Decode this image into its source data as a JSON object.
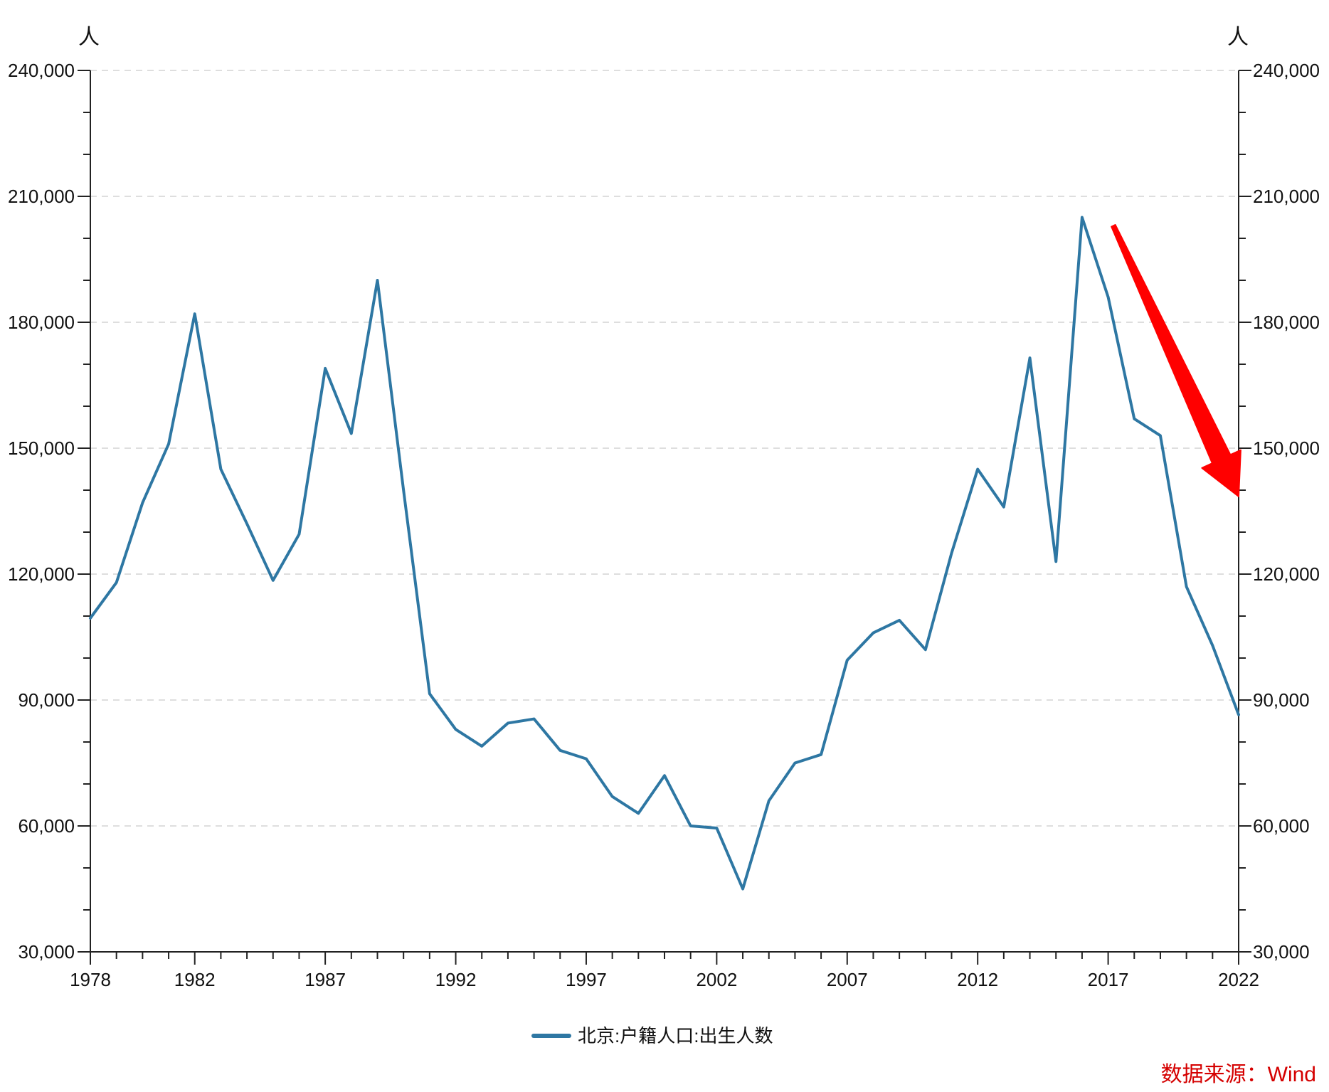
{
  "chart_data": {
    "type": "line",
    "title": "",
    "xlabel": "",
    "ylabel_left_unit": "人",
    "ylabel_right_unit": "人",
    "xlim": [
      1978,
      2022
    ],
    "ylim": [
      30000,
      240000
    ],
    "x_tick_labels": [
      "1978",
      "1982",
      "1987",
      "1992",
      "1997",
      "2002",
      "2007",
      "2012",
      "2017",
      "2022"
    ],
    "y_tick_labels": [
      "30,000",
      "60,000",
      "90,000",
      "120,000",
      "150,000",
      "180,000",
      "210,000",
      "240,000"
    ],
    "grid": "horizontal dashed",
    "legend_position": "bottom-center",
    "series": [
      {
        "name": "北京:户籍人口:出生人数",
        "color": "#2e77a3",
        "x": [
          1978,
          1979,
          1980,
          1981,
          1982,
          1983,
          1984,
          1985,
          1986,
          1987,
          1988,
          1989,
          1990,
          1991,
          1992,
          1993,
          1994,
          1995,
          1996,
          1997,
          1998,
          1999,
          2000,
          2001,
          2002,
          2003,
          2004,
          2005,
          2006,
          2007,
          2008,
          2009,
          2010,
          2011,
          2012,
          2013,
          2014,
          2015,
          2016,
          2017,
          2018,
          2019,
          2020,
          2021,
          2022
        ],
        "values": [
          109500,
          118000,
          137000,
          151000,
          182000,
          145000,
          132000,
          118500,
          129500,
          169000,
          153500,
          190000,
          140000,
          91500,
          83000,
          79000,
          84500,
          85500,
          78000,
          76000,
          67000,
          63000,
          72000,
          60000,
          59500,
          45000,
          66000,
          75000,
          77000,
          99500,
          106000,
          109000,
          102000,
          125000,
          145000,
          136000,
          171500,
          123000,
          205000,
          186000,
          157000,
          153000,
          117000,
          103000,
          86500
        ]
      }
    ],
    "annotation_arrow": {
      "color": "#ff0000",
      "from_x": 2017.2,
      "from_y": 203000,
      "to_x": 2022,
      "to_y": 138500
    },
    "source": "数据来源：Wind"
  }
}
